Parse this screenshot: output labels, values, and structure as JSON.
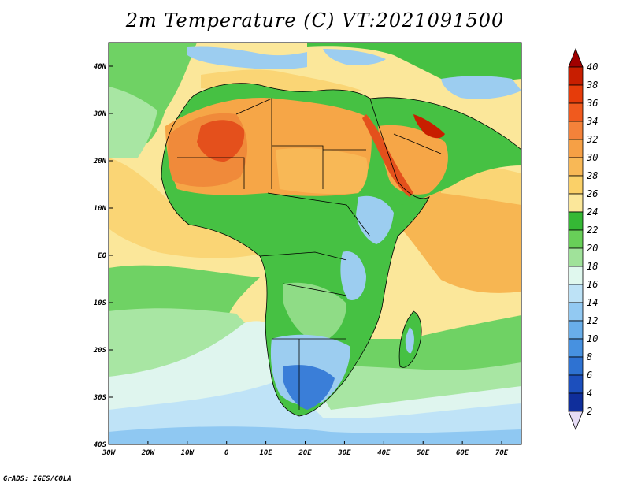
{
  "title": "2m Temperature (C) VT:2021091500",
  "footer": "GrADS: IGES/COLA",
  "map": {
    "lon_range": [
      -30,
      75
    ],
    "lat_range": [
      -40,
      45
    ],
    "x_ticks": [
      "30W",
      "20W",
      "10W",
      "0",
      "10E",
      "20E",
      "30E",
      "40E",
      "50E",
      "60E",
      "70E"
    ],
    "x_tick_lons": [
      -30,
      -20,
      -10,
      0,
      10,
      20,
      30,
      40,
      50,
      60,
      70
    ],
    "y_ticks": [
      "40N",
      "30N",
      "20N",
      "10N",
      "EQ",
      "10S",
      "20S",
      "30S",
      "40S"
    ],
    "y_tick_lats": [
      40,
      30,
      20,
      10,
      0,
      -10,
      -20,
      -30,
      -40
    ]
  },
  "colorbar": {
    "levels": [
      "40",
      "38",
      "36",
      "34",
      "32",
      "30",
      "28",
      "26",
      "24",
      "22",
      "20",
      "18",
      "16",
      "14",
      "12",
      "10",
      "8",
      "6",
      "4",
      "2"
    ],
    "colors": [
      "#a00000",
      "#c81e00",
      "#e63c0a",
      "#f05a1e",
      "#f4823a",
      "#f6a045",
      "#f8b856",
      "#fad068",
      "#fbe79a",
      "#35b835",
      "#68cf58",
      "#a0e29a",
      "#e0f8ee",
      "#bde2f6",
      "#92c9f2",
      "#69aee9",
      "#4791e0",
      "#2e72d2",
      "#1c4fbd",
      "#0f2e9b",
      "#0a1d6a"
    ]
  },
  "palette": {
    "ocean_warm": "#f7b652",
    "ocean_mild": "#fad575",
    "ocean_pale": "#fbe79a",
    "ocean_green": "#6fd264",
    "ocean_lightgreen": "#a8e6a3",
    "ocean_cool": "#dff5ee",
    "ocean_blue": "#bfe3f7",
    "ocean_deep": "#8fc8f2",
    "land_green": "#46c143",
    "land_light": "#8fdc86",
    "land_hot": "#f08a3a",
    "land_red": "#e4501c",
    "land_warm": "#f6a647",
    "land_cool": "#9ccdf0",
    "land_cold": "#3a7ed8"
  }
}
